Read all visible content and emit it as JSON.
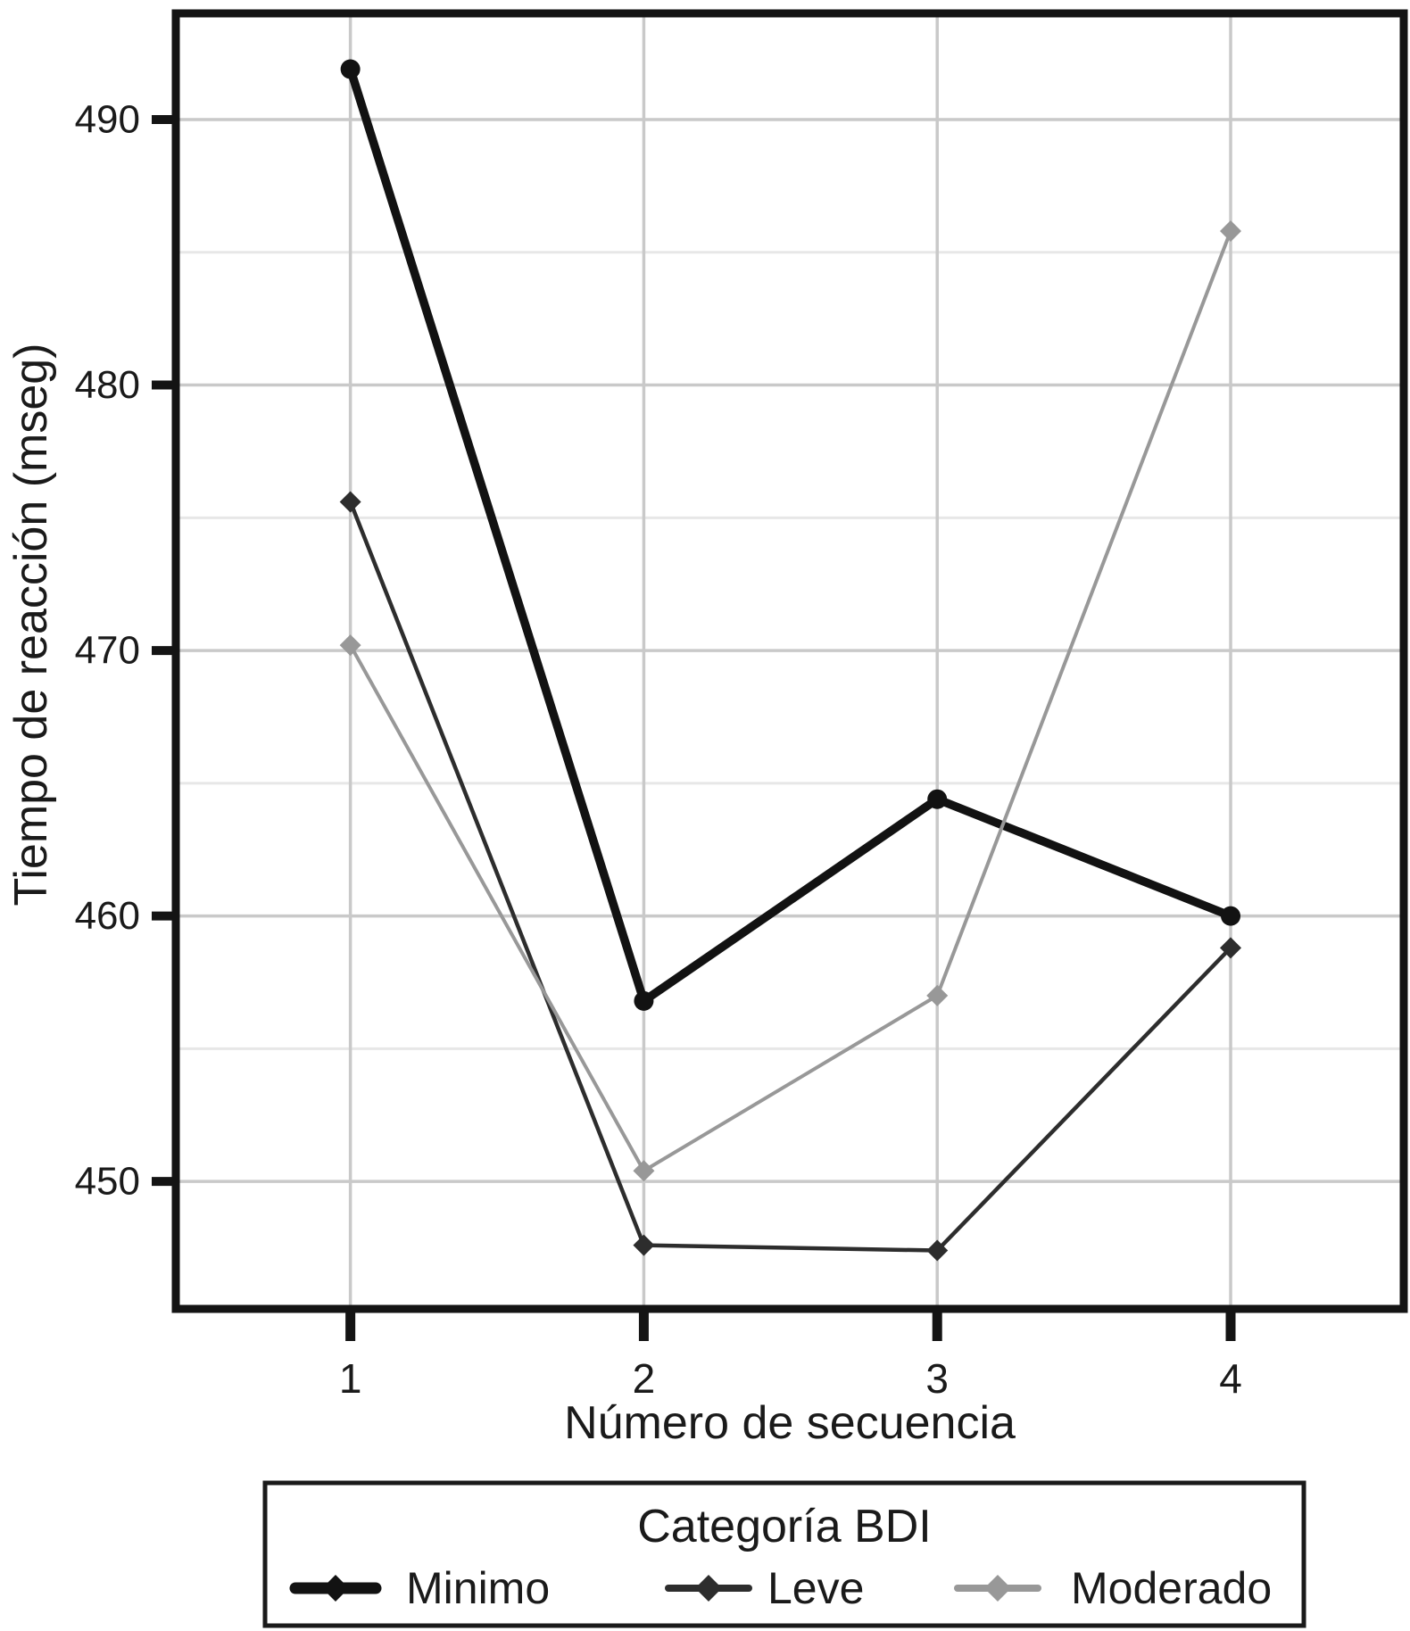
{
  "figure": {
    "background": "#ffffff",
    "text_color": "#1a1a1a",
    "major_grid_color": "#c9c9c9",
    "minor_grid_color": "#e7e7e7",
    "frame_color": "#141414"
  },
  "chart_data": {
    "type": "line",
    "title": "",
    "xlabel": "Número de secuencia",
    "ylabel": "Tiempo de reacción (mseg)",
    "x": [
      1,
      2,
      3,
      4
    ],
    "x_tick_labels": [
      "1",
      "2",
      "3",
      "4"
    ],
    "y_ticks": [
      450,
      460,
      470,
      480,
      490
    ],
    "y_tick_labels": [
      "450",
      "460",
      "470",
      "480",
      "490"
    ],
    "y_minor_gridlines": [
      455,
      465,
      475,
      485
    ],
    "xlim": [
      0.405,
      4.59
    ],
    "ylim": [
      445.2,
      494.0
    ],
    "grid": true,
    "legend": {
      "title": "Categoría BDI",
      "position": "bottom"
    },
    "series": [
      {
        "name": "Minimo",
        "values": [
          491.9,
          456.8,
          464.4,
          460.0
        ],
        "color": "#121212",
        "line_width": 9.5,
        "marker": "circle",
        "marker_size": 11
      },
      {
        "name": "Leve",
        "values": [
          475.6,
          447.6,
          447.4,
          458.8
        ],
        "color": "#2d2d2d",
        "line_width": 4.5,
        "marker": "diamond",
        "marker_size": 10
      },
      {
        "name": "Moderado",
        "values": [
          470.2,
          450.4,
          457.0,
          485.8
        ],
        "color": "#989898",
        "line_width": 4,
        "marker": "diamond",
        "marker_size": 10
      }
    ]
  }
}
